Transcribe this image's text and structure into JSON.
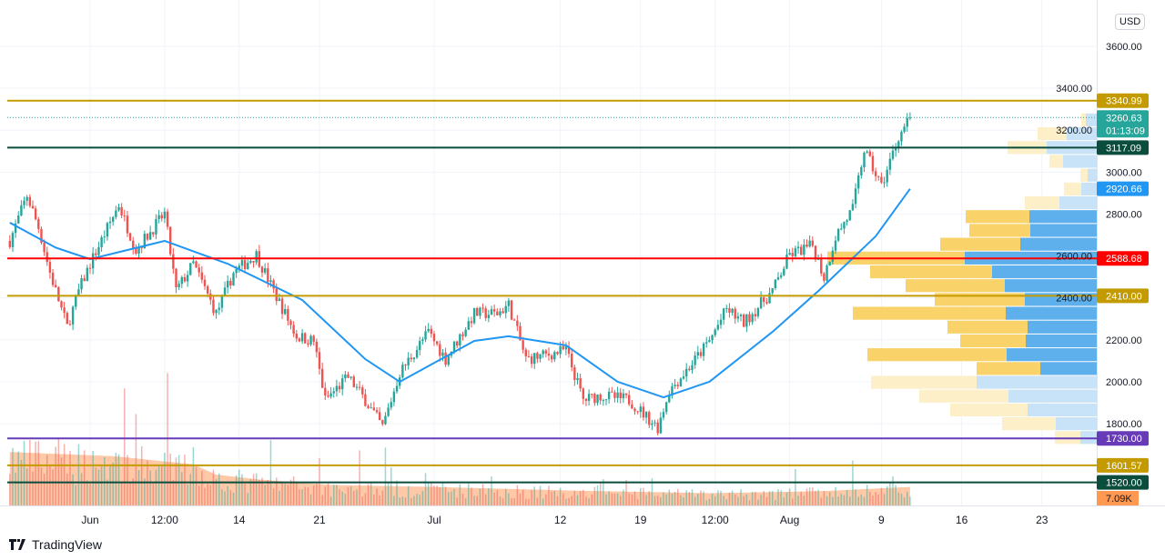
{
  "currency": "USD",
  "brand": "TradingView",
  "chart_data": {
    "type": "candlestick",
    "price_axis": {
      "range": [
        1520,
        3700
      ],
      "ticks": [
        1800,
        2000,
        2200,
        2400,
        2600,
        2800,
        3000,
        3200,
        3400,
        3600
      ],
      "tick_labels": [
        "1800.00",
        "2000.00",
        "2200.00",
        "2400.00",
        "2600.00",
        "2800.00",
        "3000.00",
        "3200.00",
        "3400.00",
        "3600.00"
      ],
      "grid": true
    },
    "time_axis": {
      "range": [
        "2021-05-25",
        "2021-08-27"
      ],
      "ticks": [
        {
          "date": "2021-06-01T00:00",
          "label": "Jun"
        },
        {
          "date": "2021-06-07T12:00",
          "label": "12:00"
        },
        {
          "date": "2021-06-14T00:00",
          "label": "14"
        },
        {
          "date": "2021-06-21T00:00",
          "label": "21"
        },
        {
          "date": "2021-07-01T00:00",
          "label": "Jul"
        },
        {
          "date": "2021-07-12T00:00",
          "label": "12"
        },
        {
          "date": "2021-07-19T00:00",
          "label": "19"
        },
        {
          "date": "2021-07-25T12:00",
          "label": "12:00"
        },
        {
          "date": "2021-08-01T00:00",
          "label": "Aug"
        },
        {
          "date": "2021-08-09T00:00",
          "label": "9"
        },
        {
          "date": "2021-08-16T00:00",
          "label": "16"
        },
        {
          "date": "2021-08-23T00:00",
          "label": "23"
        }
      ]
    },
    "price_path": [
      [
        "2021-05-25T00:00",
        2672
      ],
      [
        "2021-05-26T12:00",
        2889
      ],
      [
        "2021-05-27T12:00",
        2737
      ],
      [
        "2021-05-28T12:00",
        2520
      ],
      [
        "2021-05-30T00:00",
        2260
      ],
      [
        "2021-05-31T00:00",
        2433
      ],
      [
        "2021-06-01T00:00",
        2563
      ],
      [
        "2021-06-03T12:00",
        2845
      ],
      [
        "2021-06-05T00:00",
        2629
      ],
      [
        "2021-06-07T12:00",
        2802
      ],
      [
        "2021-06-08T12:00",
        2433
      ],
      [
        "2021-06-10T00:00",
        2563
      ],
      [
        "2021-06-12T00:00",
        2325
      ],
      [
        "2021-06-13T12:00",
        2520
      ],
      [
        "2021-06-15T12:00",
        2607
      ],
      [
        "2021-06-17T00:00",
        2433
      ],
      [
        "2021-06-19T00:00",
        2217
      ],
      [
        "2021-06-20T12:00",
        2195
      ],
      [
        "2021-06-21T12:00",
        1913
      ],
      [
        "2021-06-23T12:00",
        2022
      ],
      [
        "2021-06-25T00:00",
        1913
      ],
      [
        "2021-06-26T12:00",
        1783
      ],
      [
        "2021-06-28T00:00",
        2043
      ],
      [
        "2021-06-30T12:00",
        2238
      ],
      [
        "2021-07-02T00:00",
        2108
      ],
      [
        "2021-07-04T12:00",
        2325
      ],
      [
        "2021-07-06T12:00",
        2325
      ],
      [
        "2021-07-07T12:00",
        2368
      ],
      [
        "2021-07-09T00:00",
        2108
      ],
      [
        "2021-07-11T00:00",
        2130
      ],
      [
        "2021-07-12T12:00",
        2152
      ],
      [
        "2021-07-14T00:00",
        1913
      ],
      [
        "2021-07-15T12:00",
        1935
      ],
      [
        "2021-07-18T00:00",
        1913
      ],
      [
        "2021-07-20T12:00",
        1783
      ],
      [
        "2021-07-21T12:00",
        1957
      ],
      [
        "2021-07-23T12:00",
        2087
      ],
      [
        "2021-07-25T00:00",
        2195
      ],
      [
        "2021-07-26T12:00",
        2347
      ],
      [
        "2021-07-28T00:00",
        2282
      ],
      [
        "2021-07-30T12:00",
        2433
      ],
      [
        "2021-08-01T00:00",
        2607
      ],
      [
        "2021-08-03T00:00",
        2650
      ],
      [
        "2021-08-04T00:00",
        2498
      ],
      [
        "2021-08-05T00:00",
        2694
      ],
      [
        "2021-08-06T12:00",
        2824
      ],
      [
        "2021-08-07T12:00",
        3106
      ],
      [
        "2021-08-09T00:00",
        2932
      ],
      [
        "2021-08-10T12:00",
        3171
      ],
      [
        "2021-08-11T12:00",
        3260.63
      ]
    ],
    "moving_average": [
      [
        "2021-05-25T00:00",
        2759
      ],
      [
        "2021-05-29T00:00",
        2640
      ],
      [
        "2021-06-01T00:00",
        2585
      ],
      [
        "2021-06-07T12:00",
        2672
      ],
      [
        "2021-06-13T00:00",
        2563
      ],
      [
        "2021-06-19T12:00",
        2390
      ],
      [
        "2021-06-25T00:00",
        2108
      ],
      [
        "2021-06-28T00:00",
        2000
      ],
      [
        "2021-07-04T12:00",
        2195
      ],
      [
        "2021-07-07T12:00",
        2217
      ],
      [
        "2021-07-12T12:00",
        2174
      ],
      [
        "2021-07-17T00:00",
        2000
      ],
      [
        "2021-07-21T00:00",
        1926
      ],
      [
        "2021-07-25T00:00",
        2000
      ],
      [
        "2021-07-30T12:00",
        2238
      ],
      [
        "2021-08-03T12:00",
        2433
      ],
      [
        "2021-08-08T12:00",
        2694
      ],
      [
        "2021-08-11T12:00",
        2920.66
      ]
    ],
    "volume_ma_k": [
      [
        "2021-05-25T00:00",
        52
      ],
      [
        "2021-06-03T00:00",
        48
      ],
      [
        "2021-06-10T00:00",
        40
      ],
      [
        "2021-06-12T00:00",
        30
      ],
      [
        "2021-06-16T00:00",
        25
      ],
      [
        "2021-06-22T00:00",
        20
      ],
      [
        "2021-07-01T00:00",
        18
      ],
      [
        "2021-07-15T00:00",
        14
      ],
      [
        "2021-07-25T00:00",
        12
      ],
      [
        "2021-08-04T00:00",
        14
      ],
      [
        "2021-08-11T12:00",
        18
      ]
    ],
    "volume_profile": {
      "price_range": [
        1701,
        3282
      ],
      "rows_top_to_bottom": [
        {
          "up": 12,
          "down": 5,
          "value_area": false
        },
        {
          "up": 33,
          "down": 32,
          "value_area": false
        },
        {
          "up": 55,
          "down": 43,
          "value_area": false
        },
        {
          "up": 37,
          "down": 15,
          "value_area": false
        },
        {
          "up": 10,
          "down": 8,
          "value_area": false
        },
        {
          "up": 17,
          "down": 19,
          "value_area": false
        },
        {
          "up": 41,
          "down": 38,
          "value_area": false
        },
        {
          "up": 74,
          "down": 70,
          "value_area": true
        },
        {
          "up": 73,
          "down": 67,
          "value_area": true
        },
        {
          "up": 84,
          "down": 88,
          "value_area": true
        },
        {
          "up": 145,
          "down": 151,
          "value_area": true
        },
        {
          "up": 115,
          "down": 134,
          "value_area": true
        },
        {
          "up": 101,
          "down": 109,
          "value_area": true
        },
        {
          "up": 79,
          "down": 99,
          "value_area": true
        },
        {
          "up": 100,
          "down": 168,
          "value_area": true
        },
        {
          "up": 76,
          "down": 88,
          "value_area": true
        },
        {
          "up": 78,
          "down": 72,
          "value_area": true
        },
        {
          "up": 99,
          "down": 153,
          "value_area": true
        },
        {
          "up": 62,
          "down": 70,
          "value_area": true
        },
        {
          "up": 132,
          "down": 116,
          "value_area": false
        },
        {
          "up": 97,
          "down": 98,
          "value_area": false
        },
        {
          "up": 76,
          "down": 85,
          "value_area": false
        },
        {
          "up": 45,
          "down": 59,
          "value_area": false
        },
        {
          "up": 18,
          "down": 28,
          "value_area": false
        }
      ]
    },
    "price_lines": [
      {
        "price": 3340.99,
        "label": "3340.99",
        "color": "#c39b00",
        "style": "solid"
      },
      {
        "price": 3260.63,
        "label": "3260.63",
        "sublabel": "01:13:09",
        "color": "#26a69a",
        "style": "dotted"
      },
      {
        "price": 3117.09,
        "label": "3117.09",
        "color": "#0b4d3c",
        "style": "solid"
      },
      {
        "price": 2920.66,
        "label": "2920.66",
        "color": "#2196f3",
        "style": "none"
      },
      {
        "price": 2588.68,
        "label": "2588.68",
        "color": "#ff0000",
        "style": "solid"
      },
      {
        "price": 2410.0,
        "label": "2410.00",
        "color": "#c39b00",
        "style": "solid"
      },
      {
        "price": 1730.0,
        "label": "1730.00",
        "color": "#673ab7",
        "style": "solid"
      },
      {
        "price": 1601.57,
        "label": "1601.57",
        "color": "#c39b00",
        "style": "solid"
      },
      {
        "price": 1520.0,
        "label": "1520.00",
        "color": "#0b4d3c",
        "style": "solid"
      }
    ],
    "volume_label": {
      "label": "7.09K",
      "color": "#ff9850"
    },
    "colors": {
      "up": "#26a69a",
      "down": "#ef5350",
      "ma": "#2196f3",
      "vp_up": "#5eb0ec",
      "vp_down": "#f9d26a",
      "vp_up_light": "#c8e3f7",
      "vp_down_light": "#fdefc8",
      "volume_ma": "#ffb58a"
    }
  }
}
